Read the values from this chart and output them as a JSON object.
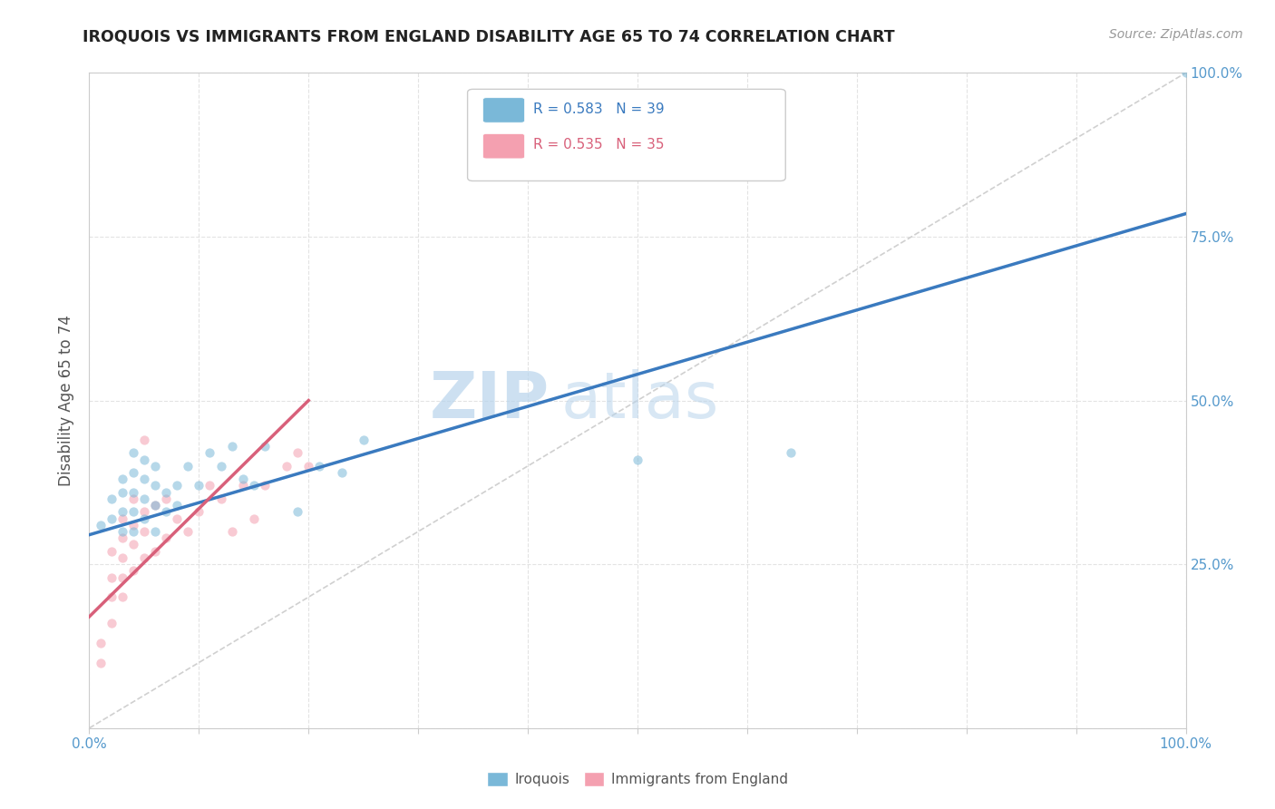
{
  "title": "IROQUOIS VS IMMIGRANTS FROM ENGLAND DISABILITY AGE 65 TO 74 CORRELATION CHART",
  "source": "Source: ZipAtlas.com",
  "ylabel": "Disability Age 65 to 74",
  "xlim": [
    0,
    1.0
  ],
  "ylim": [
    0,
    1.0
  ],
  "legend_entries": [
    {
      "label": "R = 0.583   N = 39",
      "color": "#a8c8e8"
    },
    {
      "label": "R = 0.535   N = 35",
      "color": "#f4a8b8"
    }
  ],
  "iroquois_scatter": [
    [
      0.01,
      0.31
    ],
    [
      0.02,
      0.32
    ],
    [
      0.02,
      0.35
    ],
    [
      0.03,
      0.3
    ],
    [
      0.03,
      0.33
    ],
    [
      0.03,
      0.36
    ],
    [
      0.03,
      0.38
    ],
    [
      0.04,
      0.3
    ],
    [
      0.04,
      0.33
    ],
    [
      0.04,
      0.36
    ],
    [
      0.04,
      0.39
    ],
    [
      0.04,
      0.42
    ],
    [
      0.05,
      0.32
    ],
    [
      0.05,
      0.35
    ],
    [
      0.05,
      0.38
    ],
    [
      0.05,
      0.41
    ],
    [
      0.06,
      0.3
    ],
    [
      0.06,
      0.34
    ],
    [
      0.06,
      0.37
    ],
    [
      0.06,
      0.4
    ],
    [
      0.07,
      0.33
    ],
    [
      0.07,
      0.36
    ],
    [
      0.08,
      0.34
    ],
    [
      0.08,
      0.37
    ],
    [
      0.09,
      0.4
    ],
    [
      0.1,
      0.37
    ],
    [
      0.11,
      0.42
    ],
    [
      0.12,
      0.4
    ],
    [
      0.13,
      0.43
    ],
    [
      0.14,
      0.38
    ],
    [
      0.15,
      0.37
    ],
    [
      0.16,
      0.43
    ],
    [
      0.19,
      0.33
    ],
    [
      0.21,
      0.4
    ],
    [
      0.23,
      0.39
    ],
    [
      0.25,
      0.44
    ],
    [
      0.5,
      0.41
    ],
    [
      0.64,
      0.42
    ],
    [
      1.0,
      1.0
    ]
  ],
  "england_scatter": [
    [
      0.01,
      0.1
    ],
    [
      0.01,
      0.13
    ],
    [
      0.02,
      0.16
    ],
    [
      0.02,
      0.2
    ],
    [
      0.02,
      0.23
    ],
    [
      0.02,
      0.27
    ],
    [
      0.03,
      0.2
    ],
    [
      0.03,
      0.23
    ],
    [
      0.03,
      0.26
    ],
    [
      0.03,
      0.29
    ],
    [
      0.03,
      0.32
    ],
    [
      0.04,
      0.24
    ],
    [
      0.04,
      0.28
    ],
    [
      0.04,
      0.31
    ],
    [
      0.04,
      0.35
    ],
    [
      0.05,
      0.26
    ],
    [
      0.05,
      0.3
    ],
    [
      0.05,
      0.33
    ],
    [
      0.06,
      0.27
    ],
    [
      0.06,
      0.34
    ],
    [
      0.07,
      0.29
    ],
    [
      0.07,
      0.35
    ],
    [
      0.08,
      0.32
    ],
    [
      0.09,
      0.3
    ],
    [
      0.1,
      0.33
    ],
    [
      0.11,
      0.37
    ],
    [
      0.12,
      0.35
    ],
    [
      0.13,
      0.3
    ],
    [
      0.14,
      0.37
    ],
    [
      0.15,
      0.32
    ],
    [
      0.16,
      0.37
    ],
    [
      0.18,
      0.4
    ],
    [
      0.19,
      0.42
    ],
    [
      0.2,
      0.4
    ],
    [
      0.05,
      0.44
    ]
  ],
  "iroquois_line": [
    [
      0.0,
      0.295
    ],
    [
      1.0,
      0.785
    ]
  ],
  "england_line": [
    [
      0.0,
      0.17
    ],
    [
      0.2,
      0.5
    ]
  ],
  "diagonal_line": [
    [
      0.0,
      0.0
    ],
    [
      1.0,
      1.0
    ]
  ],
  "watermark_zip": "ZIP",
  "watermark_atlas": "atlas",
  "bg_color": "#ffffff",
  "scatter_alpha": 0.55,
  "scatter_size": 55,
  "iroquois_color": "#7ab8d8",
  "england_color": "#f4a0b0",
  "iroquois_line_color": "#3a7abf",
  "england_line_color": "#d8607a",
  "diagonal_color": "#d0d0d0",
  "grid_color": "#e0e0e0",
  "title_color": "#222222",
  "axis_label_color": "#555555",
  "tick_label_color": "#5599cc"
}
